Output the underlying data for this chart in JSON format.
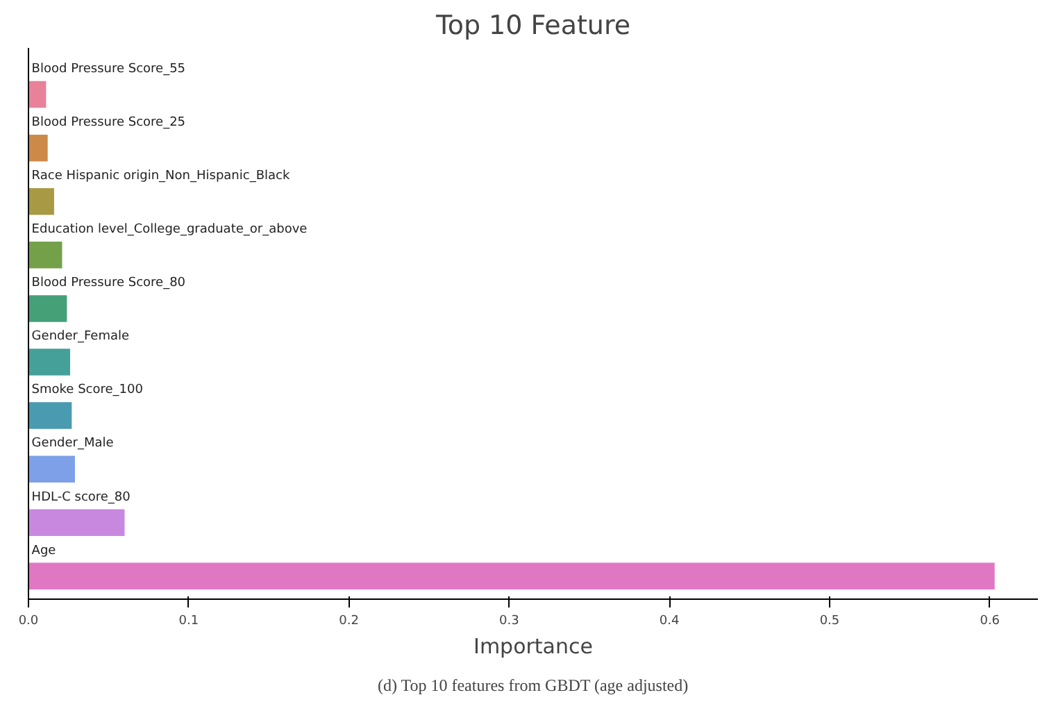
{
  "chart_data": {
    "type": "bar",
    "orientation": "horizontal",
    "title": "Top 10 Feature",
    "xlabel": "Importance",
    "categories": [
      "Blood Pressure Score_55",
      "Blood Pressure Score_25",
      "Race Hispanic origin_Non_Hispanic_Black",
      "Education level_College_graduate_or_above",
      "Blood Pressure Score_80",
      "Gender_Female",
      "Smoke Score_100",
      "Gender_Male",
      "HDL-C score_80",
      "Age"
    ],
    "values": [
      0.011,
      0.012,
      0.016,
      0.021,
      0.024,
      0.026,
      0.027,
      0.029,
      0.06,
      0.603
    ],
    "colors": [
      "#e8829a",
      "#cc8a4a",
      "#a89a45",
      "#74a04a",
      "#45a078",
      "#45a09a",
      "#4a9ab0",
      "#7ea0e8",
      "#c888e0",
      "#e077c2"
    ],
    "xlim": [
      0,
      0.63
    ],
    "xticks": [
      {
        "value": 0,
        "label": "0.0"
      },
      0.1,
      0.2,
      0.3,
      0.4,
      0.5,
      0.6
    ],
    "grid": false,
    "annotations": [
      "(d) Top 10 features from GBDT (age adjusted)"
    ]
  }
}
